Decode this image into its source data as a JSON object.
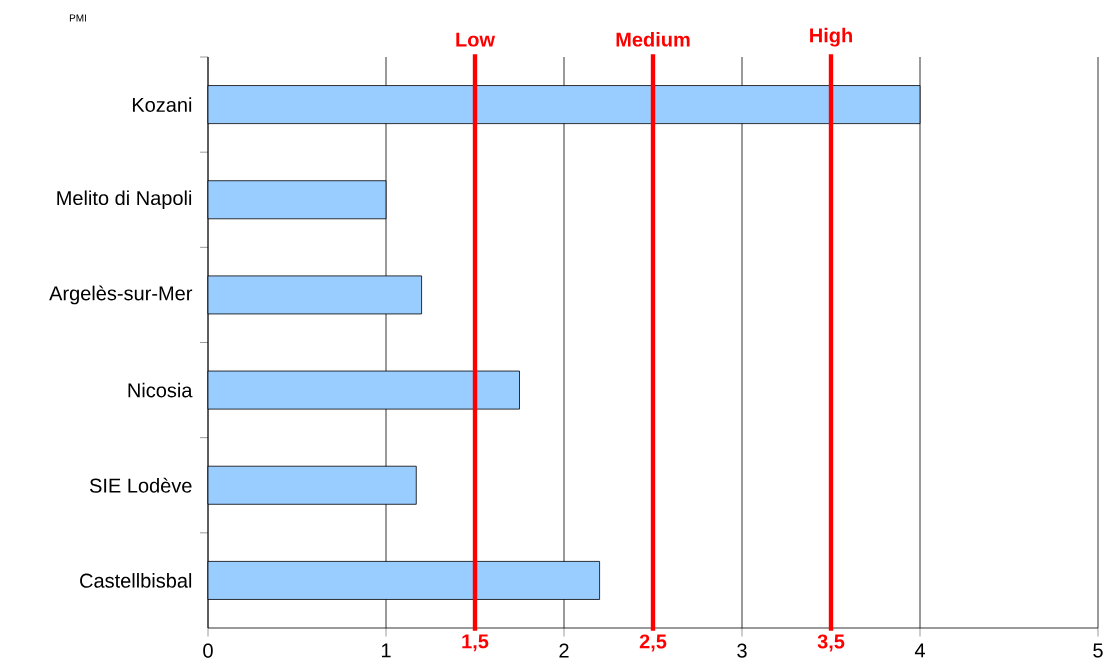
{
  "chart_data": {
    "type": "bar",
    "orientation": "horizontal",
    "ylabel": "PMI",
    "categories": [
      "Kozani",
      "Melito di Napoli",
      "Argelès-sur-Mer",
      "Nicosia",
      "SIE Lodève",
      "Castellbisbal"
    ],
    "values": [
      4.0,
      1.0,
      1.2,
      1.75,
      1.17,
      2.2
    ],
    "color": "#99ccff",
    "xlim": [
      0,
      5
    ],
    "xticks": [
      0,
      1,
      2,
      3,
      4,
      5
    ],
    "grid": "x",
    "ref_lines": [
      {
        "axis": "x",
        "value": 1.5,
        "label": "Low",
        "color": "#ff0000"
      },
      {
        "axis": "x",
        "value": 2.5,
        "label": "Medium",
        "color": "#ff0000"
      },
      {
        "axis": "x",
        "value": 3.5,
        "label": "High",
        "color": "#ff0000"
      }
    ],
    "annotations": [
      "1,5",
      "2,5",
      "3,5"
    ]
  }
}
